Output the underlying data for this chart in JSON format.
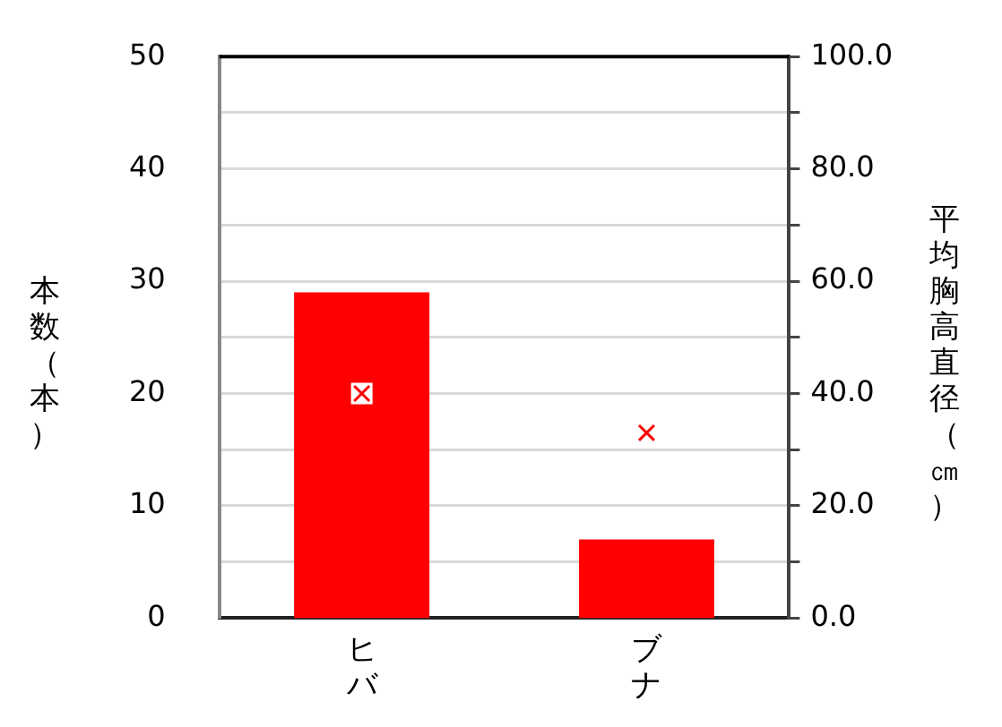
{
  "chart_data": {
    "type": "bar",
    "categories": [
      "ヒバ",
      "ブナ"
    ],
    "ylabel": "本数（本）",
    "y2label": "平均胸高直径（㎝）",
    "series": [
      {
        "color": "#ff0000",
        "values": [
          29,
          7
        ]
      },
      {
        "type": "scatter",
        "axis": "y2",
        "color": "#ff0000",
        "marker": "cross",
        "values": [
          40,
          33
        ]
      }
    ],
    "ylim": [
      0,
      50
    ],
    "yticks": [
      0,
      10,
      20,
      30,
      40,
      50
    ],
    "y2lim": [
      0,
      100
    ],
    "y2ticks": [
      {
        "value": 0,
        "label": "0.0"
      },
      {
        "value": 10,
        "label": null
      },
      {
        "value": 20,
        "label": "20.0"
      },
      {
        "value": 30,
        "label": null
      },
      {
        "value": 40,
        "label": "40.0"
      },
      {
        "value": 50,
        "label": null
      },
      {
        "value": 60,
        "label": "60.0"
      },
      {
        "value": 70,
        "label": null
      },
      {
        "value": 80,
        "label": "80.0"
      },
      {
        "value": 90,
        "label": null
      },
      {
        "value": 100,
        "label": "100.0"
      }
    ],
    "grid": true,
    "legend": false
  }
}
